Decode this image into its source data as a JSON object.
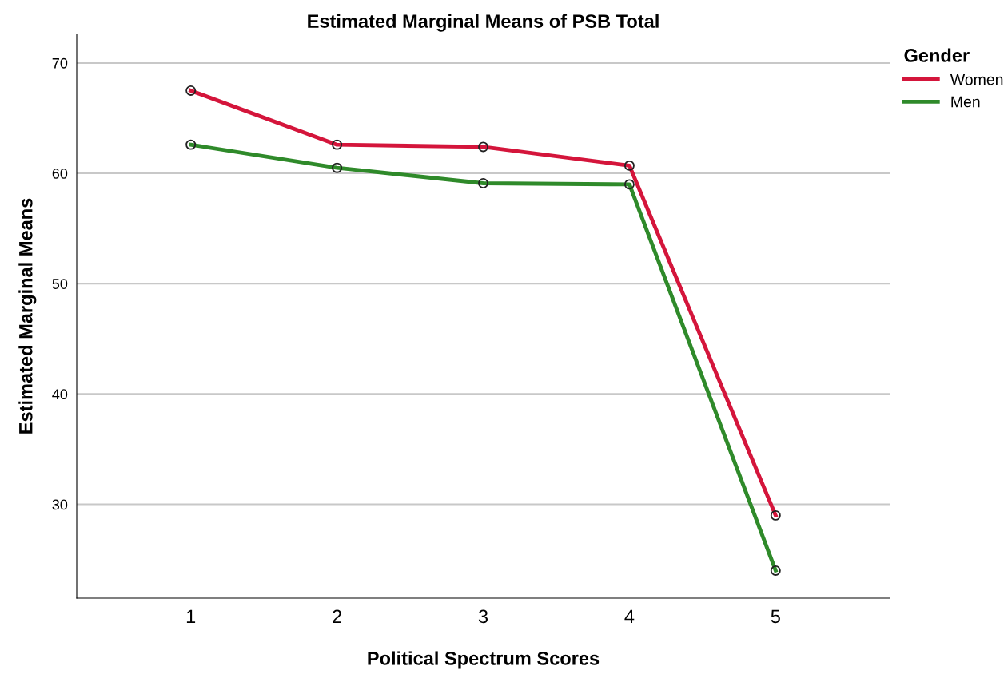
{
  "chart_data": {
    "type": "line",
    "title": "Estimated Marginal Means of PSB Total",
    "xlabel": "Political Spectrum Scores",
    "ylabel": "Estimated Marginal Means",
    "legend_title": "Gender",
    "categories": [
      "1",
      "2",
      "3",
      "4",
      "5"
    ],
    "series": [
      {
        "name": "Women",
        "color": "#d4153b",
        "values": [
          67.5,
          62.6,
          62.4,
          60.7,
          29.0
        ]
      },
      {
        "name": "Men",
        "color": "#2f8a2a",
        "values": [
          62.6,
          60.5,
          59.1,
          59.0,
          24.0
        ]
      }
    ],
    "ylim": [
      21.5,
      72.6
    ],
    "yticks": [
      30,
      40,
      50,
      60,
      70
    ],
    "grid": "y",
    "legend": "top right",
    "marker": "circle",
    "line_style": "solid"
  }
}
